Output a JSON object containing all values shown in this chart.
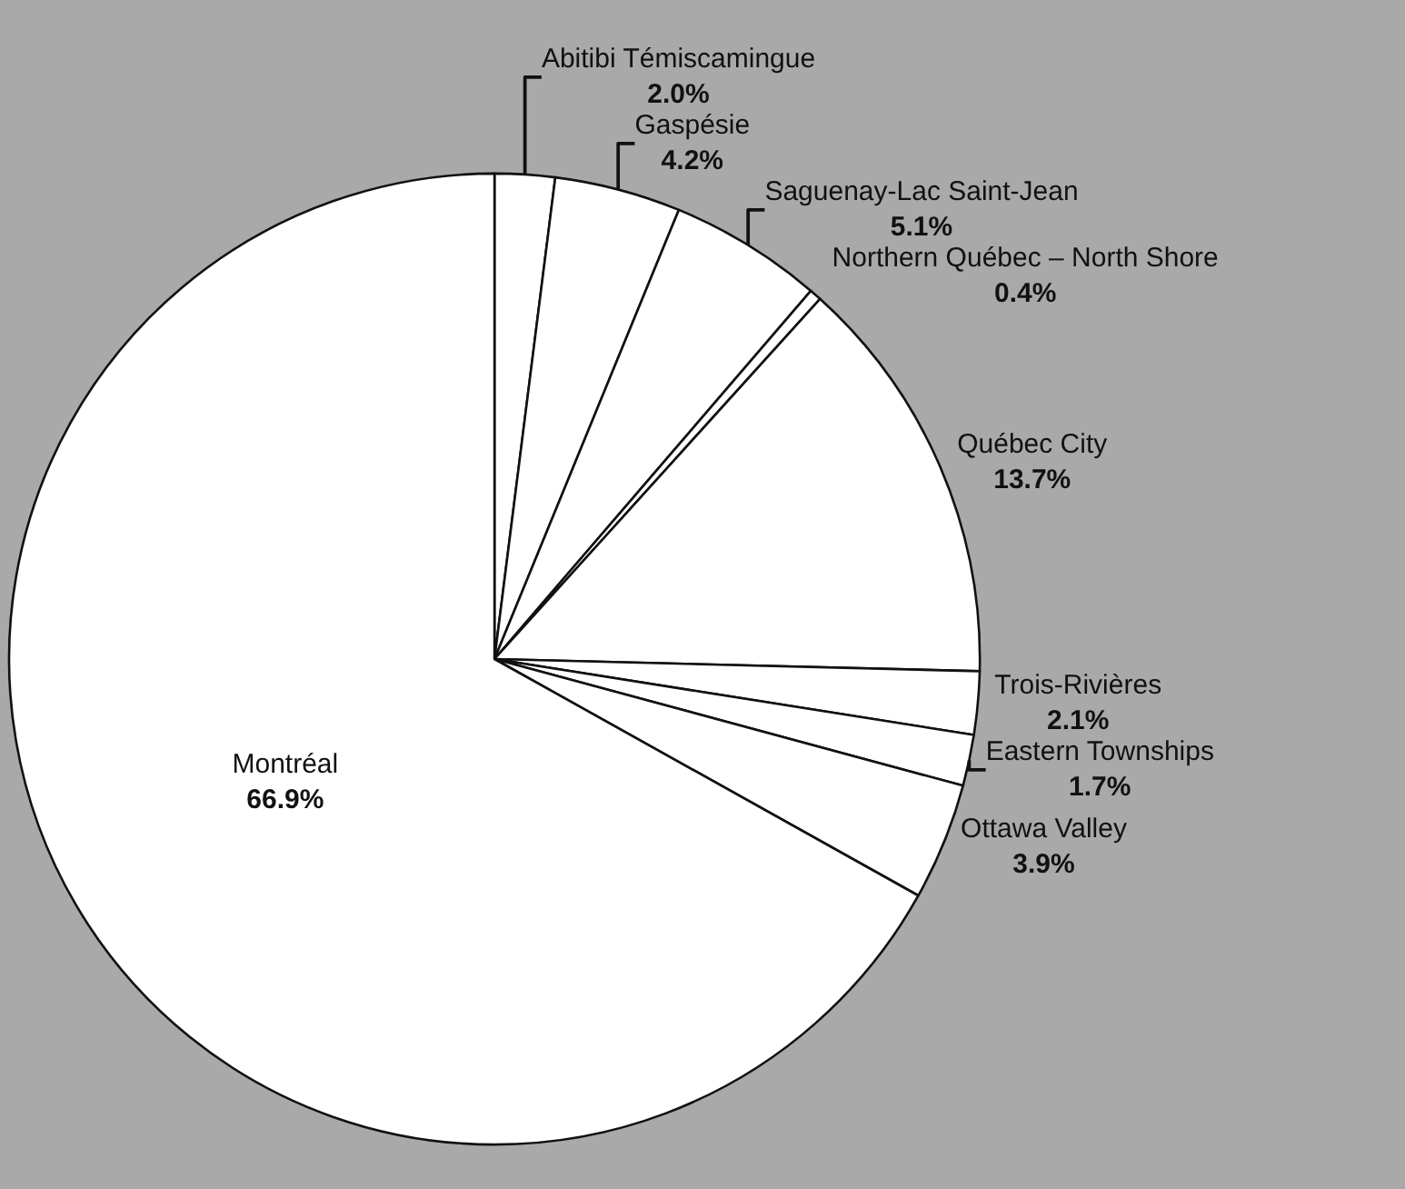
{
  "chart_data": {
    "type": "pie",
    "categories": [
      "Abitibi Témiscamingue",
      "Gaspésie",
      "Saguenay-Lac Saint-Jean",
      "Northern Québec – North Shore",
      "Québec City",
      "Trois-Rivières",
      "Eastern Townships",
      "Ottawa Valley",
      "Montréal"
    ],
    "values": [
      2.0,
      4.2,
      5.1,
      0.4,
      13.7,
      2.1,
      1.7,
      3.9,
      66.9
    ],
    "value_labels": [
      "2.0%",
      "4.2%",
      "5.1%",
      "0.4%",
      "13.7%",
      "2.1%",
      "1.7%",
      "3.9%",
      "66.9%"
    ],
    "colors": [
      "#ffffff",
      "#ffffff",
      "#ffffff",
      "#ffffff",
      "#ffffff",
      "#ffffff",
      "#ffffff",
      "#ffffff",
      "#ffffff"
    ],
    "legend": false
  }
}
